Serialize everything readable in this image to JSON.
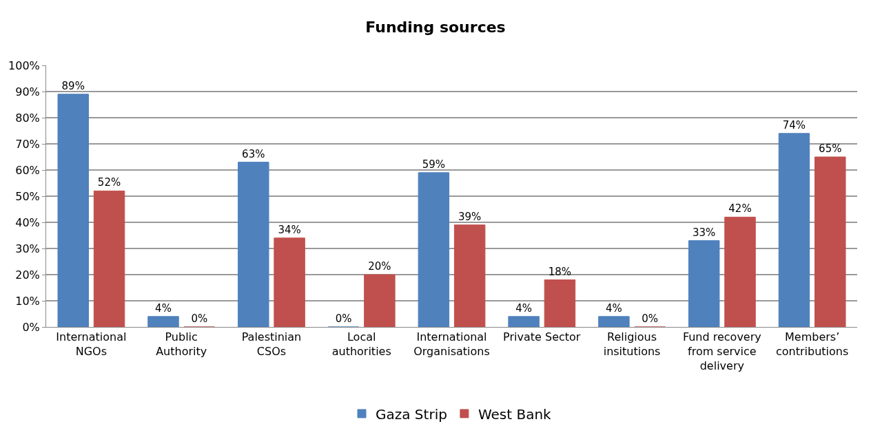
{
  "chart_data": {
    "type": "bar",
    "title": "Funding sources",
    "categories": [
      "International NGOs",
      "Public Authority",
      "Palestinian CSOs",
      "Local authorities",
      "International Organisations",
      "Private Sector",
      "Religious insitutions",
      "Fund recovery from service delivery",
      "Members’ contributions"
    ],
    "series": [
      {
        "name": "Gaza Strip",
        "color": "#4f81bd",
        "values": [
          89,
          4,
          63,
          0,
          59,
          4,
          4,
          33,
          74
        ],
        "value_labels": [
          "89%",
          "4%",
          "63%",
          "0%",
          "59%",
          "4%",
          "4%",
          "33%",
          "74%"
        ]
      },
      {
        "name": "West Bank",
        "color": "#c0504d",
        "values": [
          52,
          0,
          34,
          20,
          39,
          18,
          0,
          42,
          65
        ],
        "value_labels": [
          "52%",
          "0%",
          "34%",
          "20%",
          "39%",
          "18%",
          "0%",
          "42%",
          "65%"
        ]
      }
    ],
    "ylim": [
      0,
      100
    ],
    "yticks": [
      {
        "value": 0,
        "label": "0%"
      },
      {
        "value": 10,
        "label": "10%"
      },
      {
        "value": 20,
        "label": "20%"
      },
      {
        "value": 30,
        "label": "30%"
      },
      {
        "value": 40,
        "label": "40%"
      },
      {
        "value": 50,
        "label": "50%"
      },
      {
        "value": 60,
        "label": "60%"
      },
      {
        "value": 70,
        "label": "70%"
      },
      {
        "value": 80,
        "label": "80%"
      },
      {
        "value": 90,
        "label": "90%"
      },
      {
        "value": 100,
        "label": "100%"
      }
    ],
    "grid": "y",
    "legend": "bottom"
  }
}
